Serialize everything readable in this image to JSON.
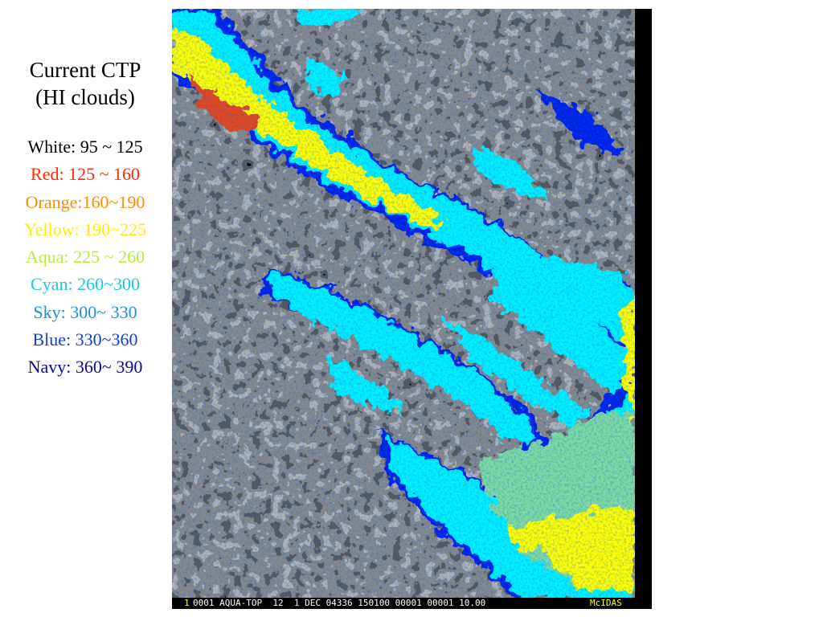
{
  "legend": {
    "title_line1": "Current CTP",
    "title_line2": "(HI clouds)",
    "items": [
      {
        "label": "White: 95 ~ 125",
        "color": "#000000"
      },
      {
        "label": "Red: 125 ~ 160",
        "color": "#ff2a00"
      },
      {
        "label": "Orange:160~190",
        "color": "#ff8c00"
      },
      {
        "label": "Yellow: 190~225",
        "color": "#ffee00"
      },
      {
        "label": "Aqua: 225 ~ 260",
        "color": "#b8ec3a"
      },
      {
        "label": "Cyan: 260~300",
        "color": "#17c9ea"
      },
      {
        "label": "Sky: 300~ 330",
        "color": "#1f8fdc"
      },
      {
        "label": "Blue: 330~360",
        "color": "#1040d8"
      },
      {
        "label": "Navy: 360~ 390",
        "color": "#0a0a9a"
      }
    ]
  },
  "satellite": {
    "frame_number": "1",
    "status_text": "0001 AQUA-TOP  12  1 DEC 04336 150100 00001 00001 10.00",
    "logo_text": "McIDAS",
    "palette": {
      "red": "#e8471c",
      "yellow": "#ffff00",
      "aqua": "#7fd9a0",
      "cyan": "#00f0ff",
      "blue": "#0022e6",
      "gray": "#8a8a8a",
      "dark": "#2b2b2b"
    }
  }
}
